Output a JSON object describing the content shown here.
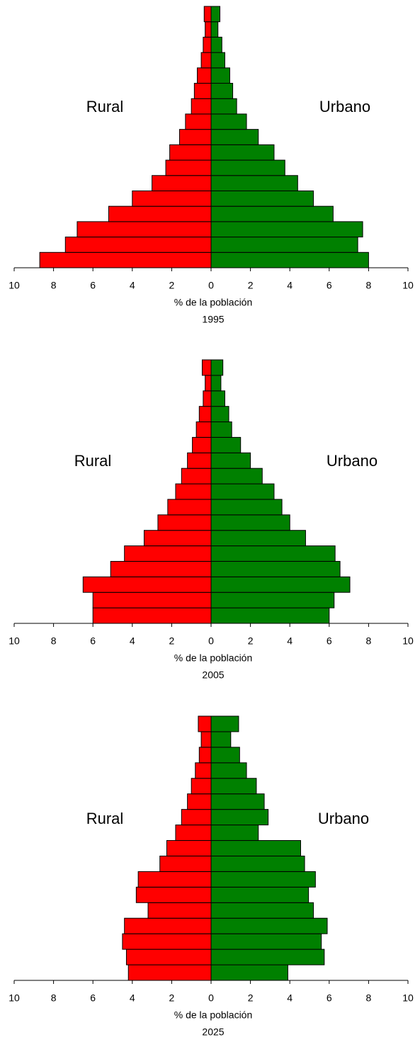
{
  "chart_data": [
    {
      "type": "pyramid",
      "title": "1995",
      "xlabel": "% de la población",
      "categories": [
        null,
        null,
        null,
        null,
        null,
        null,
        null,
        null,
        null,
        null,
        null,
        null,
        null,
        null,
        null,
        null,
        null
      ],
      "series": [
        {
          "name": "Rural",
          "color": "#ff0000",
          "values": [
            -8.7,
            -7.4,
            -6.8,
            -5.2,
            -4.0,
            -3.0,
            -2.3,
            -2.1,
            -1.6,
            -1.3,
            -1.0,
            -0.85,
            -0.7,
            -0.5,
            -0.4,
            -0.3,
            -0.35
          ]
        },
        {
          "name": "Urbano",
          "color": "#008000",
          "values": [
            8.0,
            7.45,
            7.7,
            6.2,
            5.2,
            4.4,
            3.75,
            3.2,
            2.4,
            1.8,
            1.3,
            1.1,
            0.95,
            0.7,
            0.55,
            0.35,
            0.45
          ]
        }
      ],
      "xlim": [
        -10,
        10
      ],
      "xticks": [
        {
          "value": -10,
          "label": "10"
        },
        {
          "value": -8,
          "label": "8"
        },
        {
          "value": -6,
          "label": "6"
        },
        {
          "value": -4,
          "label": "4"
        },
        {
          "value": -2,
          "label": "2"
        },
        0,
        2,
        4,
        6,
        8,
        10
      ]
    },
    {
      "type": "pyramid",
      "title": "2005",
      "xlabel": "% de la población",
      "categories": [
        null,
        null,
        null,
        null,
        null,
        null,
        null,
        null,
        null,
        null,
        null,
        null,
        null,
        null,
        null,
        null,
        null
      ],
      "series": [
        {
          "name": "Rural",
          "color": "#ff0000",
          "values": [
            -6.0,
            -6.0,
            -6.5,
            -5.1,
            -4.4,
            -3.4,
            -2.7,
            -2.2,
            -1.8,
            -1.5,
            -1.2,
            -0.95,
            -0.75,
            -0.6,
            -0.4,
            -0.3,
            -0.45
          ]
        },
        {
          "name": "Urbano",
          "color": "#008000",
          "values": [
            6.0,
            6.25,
            7.05,
            6.55,
            6.3,
            4.8,
            4.0,
            3.6,
            3.2,
            2.6,
            2.0,
            1.5,
            1.05,
            0.9,
            0.7,
            0.5,
            0.6
          ]
        }
      ],
      "xlim": [
        -10,
        10
      ],
      "xticks": [
        {
          "value": -10,
          "label": "10"
        },
        {
          "value": -8,
          "label": "8"
        },
        {
          "value": -6,
          "label": "6"
        },
        {
          "value": -4,
          "label": "4"
        },
        {
          "value": -2,
          "label": "2"
        },
        0,
        2,
        4,
        6,
        8,
        10
      ]
    },
    {
      "type": "pyramid",
      "title": "2025",
      "xlabel": "% de la población",
      "categories": [
        null,
        null,
        null,
        null,
        null,
        null,
        null,
        null,
        null,
        null,
        null,
        null,
        null,
        null,
        null,
        null,
        null
      ],
      "series": [
        {
          "name": "Rural",
          "color": "#ff0000",
          "values": [
            -4.2,
            -4.3,
            -4.5,
            -4.4,
            -3.2,
            -3.8,
            -3.7,
            -2.6,
            -2.25,
            -1.8,
            -1.5,
            -1.2,
            -1.0,
            -0.8,
            -0.6,
            -0.5,
            -0.65
          ]
        },
        {
          "name": "Urbano",
          "color": "#008000",
          "values": [
            3.9,
            5.75,
            5.6,
            5.9,
            5.2,
            4.95,
            5.3,
            4.75,
            4.55,
            2.4,
            2.9,
            2.7,
            2.3,
            1.8,
            1.45,
            1.0,
            1.4
          ]
        }
      ],
      "xlim": [
        -10,
        10
      ],
      "xticks": [
        {
          "value": -10,
          "label": "10"
        },
        {
          "value": -8,
          "label": "8"
        },
        {
          "value": -6,
          "label": "6"
        },
        {
          "value": -4,
          "label": "4"
        },
        {
          "value": -2,
          "label": "2"
        },
        0,
        2,
        4,
        6,
        8,
        10
      ]
    }
  ]
}
